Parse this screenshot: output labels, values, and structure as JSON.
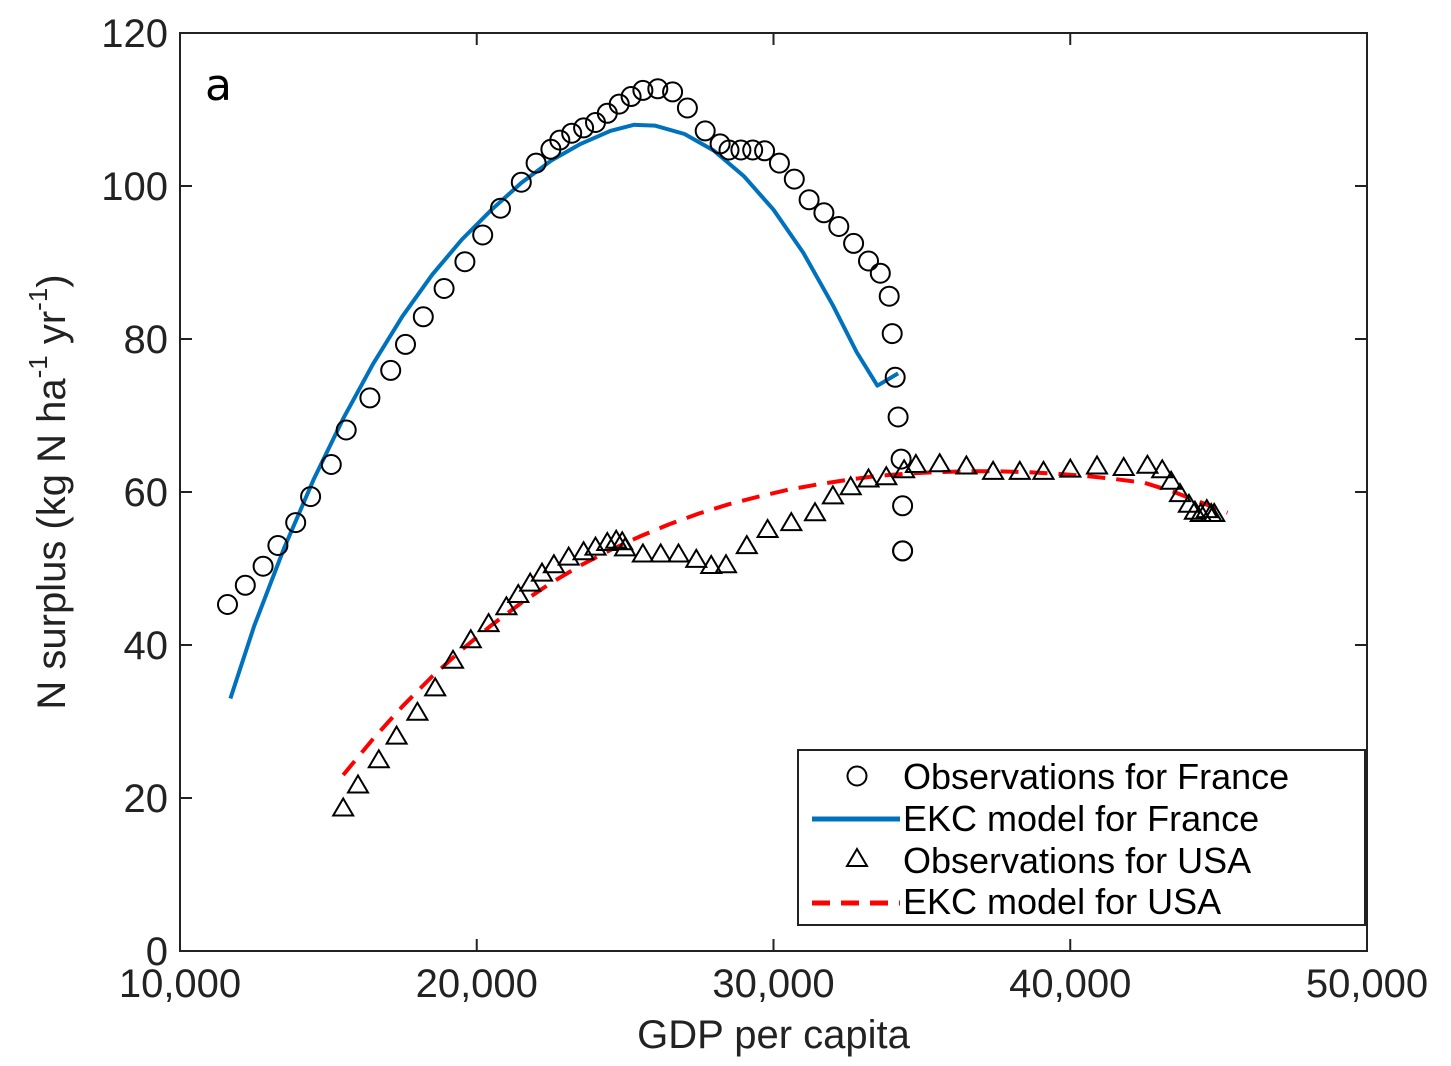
{
  "panel_label": "a",
  "colors": {
    "france_model": "#0072BD",
    "usa_model": "#FF0000",
    "observations": "#000000",
    "axes": "#222222"
  },
  "chart_data": {
    "type": "scatter",
    "xlabel": "GDP per capita",
    "ylabel": {
      "main": "N surplus (kg N ha",
      "sup1": "-1",
      "mid": " yr",
      "sup2": "-1",
      "end": ")"
    },
    "xlim": [
      10000,
      50000
    ],
    "ylim": [
      0,
      120
    ],
    "xticks": [
      10000,
      20000,
      30000,
      40000,
      50000
    ],
    "xtick_labels": [
      "10,000",
      "20,000",
      "30,000",
      "40,000",
      "50,000"
    ],
    "yticks": [
      0,
      20,
      40,
      60,
      80,
      100,
      120
    ],
    "ytick_labels": [
      "0",
      "20",
      "40",
      "60",
      "80",
      "100",
      "120"
    ],
    "grid": false,
    "legend_position": "bottom-right",
    "series": [
      {
        "name": "Observations for France",
        "kind": "markers",
        "marker": "circle",
        "x": [
          11600,
          12200,
          12800,
          13300,
          13900,
          14400,
          15100,
          15600,
          16400,
          17100,
          17600,
          18200,
          18900,
          19600,
          20200,
          20800,
          21500,
          22000,
          22500,
          22800,
          23200,
          23600,
          24000,
          24400,
          24800,
          25200,
          25600,
          26100,
          26600,
          27100,
          27700,
          28200,
          28500,
          28900,
          29300,
          29700,
          30200,
          30700,
          31200,
          31700,
          32200,
          32700,
          33200,
          33600,
          33900,
          34000,
          34100,
          34200,
          34300,
          34350,
          34350,
          34350
        ],
        "y": [
          45.3,
          47.8,
          50.3,
          53.0,
          56.0,
          59.4,
          63.6,
          68.1,
          72.3,
          75.9,
          79.3,
          82.9,
          86.6,
          90.1,
          93.6,
          97.1,
          100.5,
          103.0,
          104.8,
          106.0,
          106.9,
          107.6,
          108.3,
          109.5,
          110.7,
          111.7,
          112.5,
          112.7,
          112.3,
          110.2,
          107.2,
          105.5,
          104.7,
          104.7,
          104.7,
          104.6,
          103.0,
          100.9,
          98.2,
          96.5,
          94.7,
          92.5,
          90.2,
          88.6,
          85.6,
          80.7,
          75.0,
          69.8,
          64.3,
          58.2,
          52.3,
          52.3
        ]
      },
      {
        "name": "EKC model for France",
        "kind": "line",
        "style": "solid",
        "x": [
          11700,
          12500,
          13500,
          14500,
          15500,
          16500,
          17500,
          18500,
          19500,
          20500,
          21500,
          22500,
          23500,
          24500,
          25300,
          26000,
          27000,
          28000,
          29000,
          30000,
          31000,
          32000,
          32800,
          33500,
          34200
        ],
        "y": [
          33.0,
          42.5,
          52.6,
          61.6,
          69.6,
          76.7,
          83.0,
          88.4,
          93.0,
          96.9,
          100.4,
          103.3,
          105.5,
          107.2,
          108.0,
          107.9,
          106.8,
          104.6,
          101.3,
          96.9,
          91.3,
          84.4,
          78.3,
          73.9,
          75.5
        ]
      },
      {
        "name": "Observations for USA",
        "kind": "markers",
        "marker": "triangle",
        "x": [
          15500,
          16000,
          16700,
          17300,
          18000,
          18600,
          19200,
          19800,
          20400,
          21000,
          21400,
          21800,
          22200,
          22600,
          23100,
          23600,
          24000,
          24400,
          24700,
          24900,
          25000,
          25600,
          26200,
          26800,
          27400,
          27900,
          28400,
          29100,
          29800,
          30600,
          31400,
          32000,
          32600,
          33200,
          33800,
          34400,
          34800,
          35600,
          36500,
          37400,
          38300,
          39100,
          40000,
          40900,
          41800,
          42600,
          43100,
          43400,
          43700,
          44000,
          44200,
          44400,
          44600,
          44750,
          44850
        ],
        "y": [
          18.5,
          21.5,
          24.8,
          27.9,
          31.0,
          34.2,
          37.8,
          40.5,
          42.6,
          44.8,
          46.4,
          47.9,
          49.2,
          50.3,
          51.3,
          52.0,
          52.6,
          53.2,
          53.5,
          53.3,
          52.5,
          51.7,
          51.7,
          51.7,
          51.0,
          50.2,
          50.3,
          52.8,
          54.9,
          55.8,
          57.1,
          59.3,
          60.5,
          61.5,
          61.8,
          62.7,
          63.4,
          63.5,
          63.2,
          62.5,
          62.5,
          62.5,
          62.8,
          63.2,
          63.0,
          63.3,
          62.7,
          61.2,
          59.6,
          58.2,
          57.3,
          57.0,
          57.5,
          57.0,
          57.0
        ]
      },
      {
        "name": "EKC model for USA",
        "kind": "line",
        "style": "dashed",
        "x": [
          15500,
          16500,
          17500,
          18500,
          19500,
          20500,
          21500,
          22500,
          23500,
          24500,
          25500,
          26500,
          27500,
          28500,
          29500,
          30500,
          31500,
          32500,
          33500,
          34500,
          35500,
          36500,
          37500,
          38500,
          39500,
          40500,
          41500,
          42500,
          43500,
          44500,
          45300
        ],
        "y": [
          23.0,
          27.7,
          32.0,
          35.9,
          39.4,
          42.6,
          45.5,
          48.1,
          50.4,
          52.4,
          54.2,
          55.8,
          57.2,
          58.4,
          59.4,
          60.3,
          61.0,
          61.6,
          62.1,
          62.4,
          62.6,
          62.7,
          62.7,
          62.6,
          62.4,
          62.1,
          61.7,
          61.2,
          60.0,
          58.5,
          57.3
        ]
      }
    ]
  }
}
